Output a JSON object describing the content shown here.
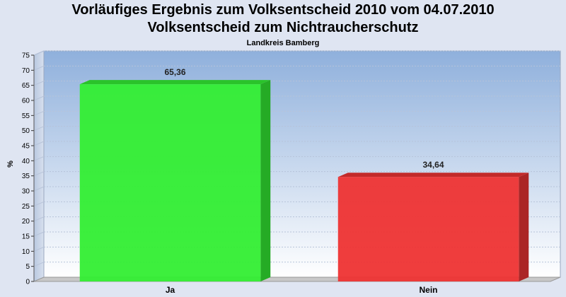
{
  "header": {
    "title_line1": "Vorläufiges Ergebnis zum Volksentscheid 2010 vom 04.07.2010",
    "title_line2": "Volksentscheid zum Nichtraucherschutz",
    "subtitle": "Landkreis Bamberg"
  },
  "chart_data": {
    "type": "bar",
    "title": "Vorläufiges Ergebnis zum Volksentscheid 2010 vom 04.07.2010 / Volksentscheid zum Nichtraucherschutz",
    "subtitle": "Landkreis Bamberg",
    "categories": [
      "Ja",
      "Nein"
    ],
    "values": [
      65.36,
      34.64
    ],
    "value_labels": [
      "65,36",
      "34,64"
    ],
    "bar_colors": [
      "#33ee33",
      "#ee3333"
    ],
    "ylabel": "%",
    "xlabel": "",
    "ylim": [
      0,
      75
    ],
    "yticks": [
      0,
      5,
      10,
      15,
      20,
      25,
      30,
      35,
      40,
      45,
      50,
      55,
      60,
      65,
      70,
      75
    ],
    "grid": true,
    "legend": "none",
    "style": "3d"
  }
}
